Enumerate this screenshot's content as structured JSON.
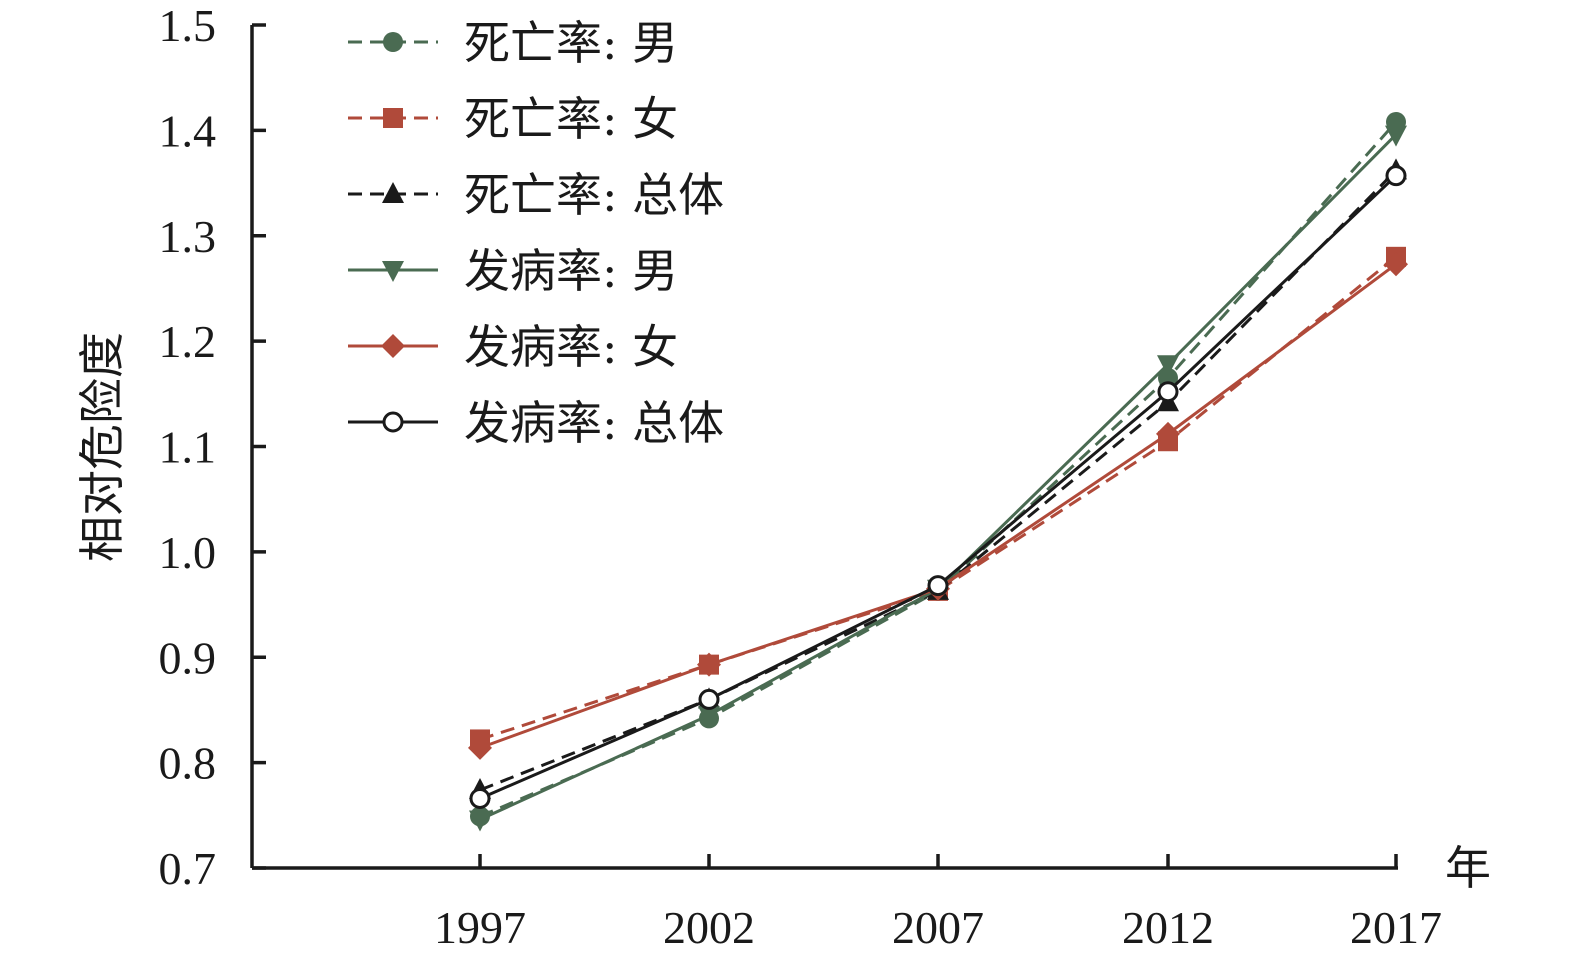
{
  "chart_data": {
    "type": "line",
    "title": "",
    "xlabel": "年",
    "ylabel": "相对危险度",
    "categories": [
      "1997",
      "2002",
      "2007",
      "2012",
      "2017"
    ],
    "ylim": [
      0.7,
      1.5
    ],
    "yticks": [
      "0.7",
      "0.8",
      "0.9",
      "1.0",
      "1.1",
      "1.2",
      "1.3",
      "1.4",
      "1.5"
    ],
    "grid": false,
    "legend_position": "top-left",
    "series": [
      {
        "name": "死亡率: 男",
        "values": [
          0.749,
          0.842,
          0.963,
          1.165,
          1.408
        ],
        "color": "#4a6b52",
        "dashed": true,
        "marker": "circle-filled"
      },
      {
        "name": "死亡率: 女",
        "values": [
          0.822,
          0.893,
          0.963,
          1.105,
          1.28
        ],
        "color": "#b04a3a",
        "dashed": true,
        "marker": "square"
      },
      {
        "name": "死亡率: 总体",
        "values": [
          0.774,
          0.86,
          0.963,
          1.142,
          1.362
        ],
        "color": "#1a1a1a",
        "dashed": true,
        "marker": "triangle-up"
      },
      {
        "name": "发病率: 男",
        "values": [
          0.746,
          0.845,
          0.965,
          1.178,
          1.396
        ],
        "color": "#4a6b52",
        "dashed": false,
        "marker": "triangle-down"
      },
      {
        "name": "发病率: 女",
        "values": [
          0.814,
          0.893,
          0.965,
          1.112,
          1.273
        ],
        "color": "#b04a3a",
        "dashed": false,
        "marker": "diamond"
      },
      {
        "name": "发病率: 总体",
        "values": [
          0.766,
          0.86,
          0.968,
          1.152,
          1.357
        ],
        "color": "#1a1a1a",
        "dashed": false,
        "marker": "circle-open"
      }
    ]
  }
}
